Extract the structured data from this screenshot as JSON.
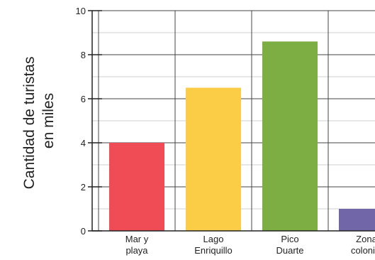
{
  "chart_data": {
    "type": "bar",
    "title": "",
    "xlabel": "",
    "ylabel_lines": [
      "Cantidad de turistas",
      "en miles"
    ],
    "categories": [
      [
        "Mar y",
        "playa"
      ],
      [
        "Lago",
        "Enriquillo"
      ],
      [
        "Pico",
        "Duarte"
      ],
      [
        "Zona",
        "colonial"
      ]
    ],
    "values": [
      4,
      6.5,
      8.6,
      1
    ],
    "colors": [
      "#ef4c55",
      "#fbcc46",
      "#7cae44",
      "#7167a8"
    ],
    "ylim": [
      0,
      10
    ],
    "yticks": [
      0,
      2,
      4,
      6,
      8,
      10
    ],
    "y_minor_step": 1,
    "grid": true,
    "legend": "none"
  }
}
